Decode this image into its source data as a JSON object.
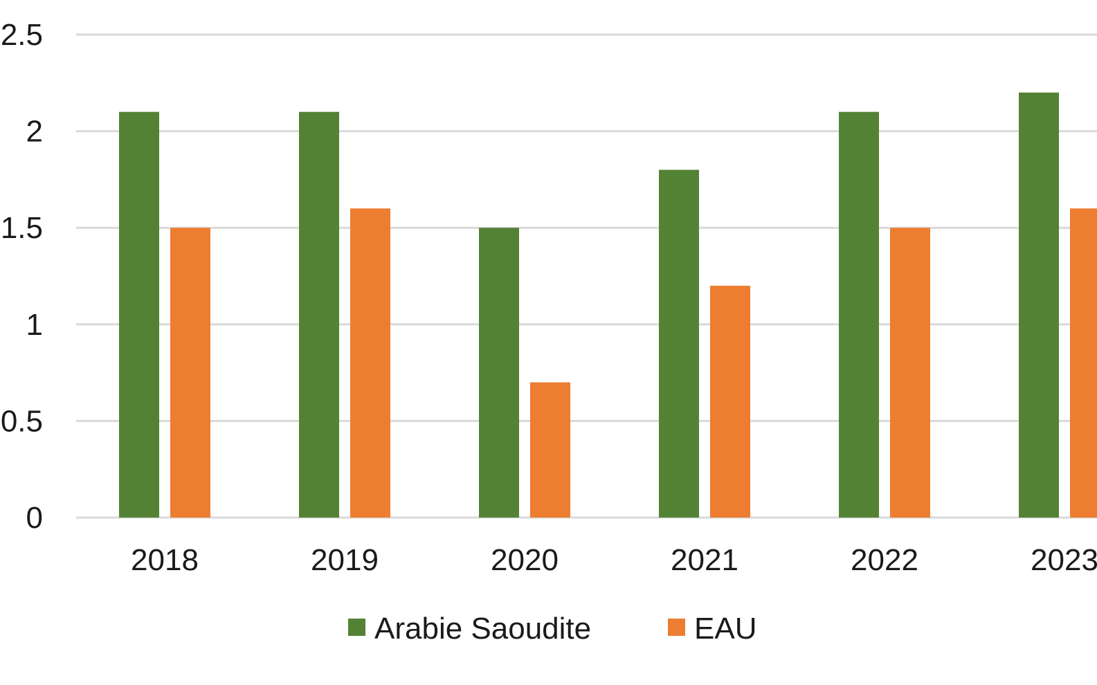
{
  "chart_data": {
    "type": "bar",
    "categories": [
      "2018",
      "2019",
      "2020",
      "2021",
      "2022",
      "2023"
    ],
    "series": [
      {
        "name": "Arabie Saoudite",
        "color": "#548235",
        "values": [
          2.1,
          2.1,
          1.5,
          1.8,
          2.1,
          2.2
        ]
      },
      {
        "name": "EAU",
        "color": "#ed7d31",
        "values": [
          1.5,
          1.6,
          0.7,
          1.2,
          1.5,
          1.6
        ]
      }
    ],
    "y_ticks": [
      "0",
      "0.5",
      "1",
      "1.5",
      "2",
      "2.5"
    ],
    "ylim": [
      0,
      2.5
    ],
    "grid": true,
    "gridline_color": "#d9d9d9",
    "legend_position": "bottom-center"
  }
}
